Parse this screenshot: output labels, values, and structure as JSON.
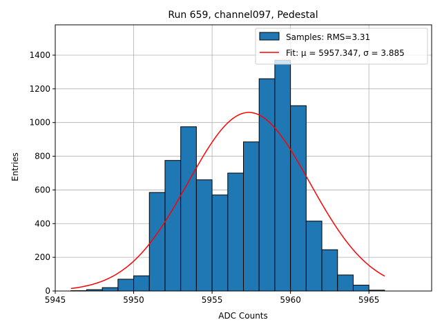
{
  "chart_data": {
    "type": "bar",
    "title": "Run 659, channel097, Pedestal",
    "xlabel": "ADC Counts",
    "ylabel": "Entries",
    "xlim": [
      5945,
      5969
    ],
    "ylim": [
      0,
      1580
    ],
    "xticks": [
      5945,
      5950,
      5955,
      5960,
      5965
    ],
    "yticks": [
      0,
      200,
      400,
      600,
      800,
      1000,
      1200,
      1400
    ],
    "grid": true,
    "legend_position": "top-right",
    "bar_color": "#1f77b4",
    "bar_edge_color": "#000000",
    "fit_color": "#ff0000",
    "histogram": {
      "name": "Samples: RMS=3.31",
      "bin_edges": [
        5946,
        5947,
        5948,
        5949,
        5950,
        5951,
        5952,
        5953,
        5954,
        5955,
        5956,
        5957,
        5958,
        5959,
        5960,
        5961,
        5962,
        5963,
        5964,
        5965,
        5966
      ],
      "counts": [
        2,
        8,
        20,
        70,
        90,
        585,
        775,
        975,
        660,
        570,
        700,
        885,
        1260,
        1370,
        1100,
        415,
        245,
        95,
        35,
        5
      ]
    },
    "fit": {
      "name": "Fit: μ = 5957.347, σ = 3.885",
      "mu": 5957.347,
      "sigma": 3.885,
      "amplitude": 1060,
      "x_range": [
        5946,
        5966
      ]
    }
  }
}
